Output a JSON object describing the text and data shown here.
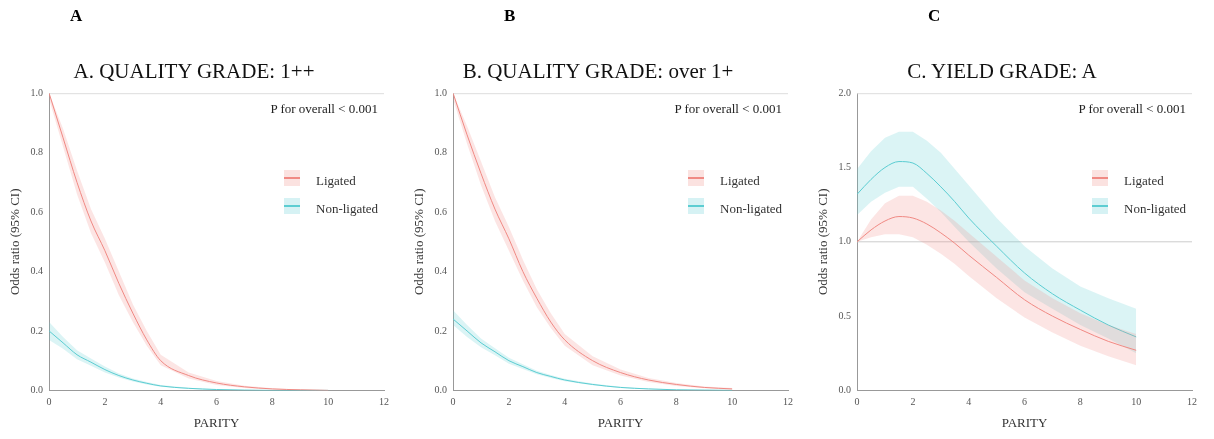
{
  "chart_data": [
    {
      "type": "line",
      "title": "A. QUALITY GRADE: 1++",
      "xlabel": "PARITY",
      "ylabel": "Odds ratio (95% CI)",
      "annotations": [
        "A",
        "P for overall < 0.001"
      ],
      "legend": "right",
      "x": [
        0,
        0.5,
        1,
        1.5,
        2,
        2.5,
        3,
        3.5,
        4,
        5,
        6,
        7,
        8,
        9,
        10
      ],
      "series": [
        {
          "name": "Ligated",
          "color": "#f08a84",
          "values": [
            1.0,
            0.85,
            0.7,
            0.57,
            0.47,
            0.36,
            0.26,
            0.17,
            0.1,
            0.05,
            0.025,
            0.012,
            0.005,
            0.002,
            0.0
          ],
          "lower": [
            0.98,
            0.82,
            0.66,
            0.53,
            0.43,
            0.32,
            0.23,
            0.15,
            0.085,
            0.04,
            0.018,
            0.008,
            0.003,
            0.001,
            0.0
          ],
          "upper": [
            1.0,
            0.88,
            0.74,
            0.61,
            0.51,
            0.4,
            0.29,
            0.2,
            0.12,
            0.06,
            0.032,
            0.016,
            0.007,
            0.003,
            0.001
          ]
        },
        {
          "name": "Non-ligated",
          "color": "#5ccdd2",
          "values": [
            0.2,
            0.16,
            0.12,
            0.095,
            0.07,
            0.05,
            0.035,
            0.024,
            0.015,
            0.007,
            0.003,
            0.001,
            0.0,
            0.0,
            0.0
          ],
          "lower": [
            0.17,
            0.14,
            0.105,
            0.083,
            0.06,
            0.043,
            0.03,
            0.02,
            0.012,
            0.005,
            0.002,
            0.0,
            0.0,
            0.0,
            0.0
          ],
          "upper": [
            0.23,
            0.18,
            0.135,
            0.107,
            0.08,
            0.057,
            0.04,
            0.028,
            0.018,
            0.009,
            0.004,
            0.002,
            0.001,
            0.0,
            0.0
          ]
        }
      ],
      "xlim": [
        0,
        12
      ],
      "xticks": [
        0,
        2,
        4,
        6,
        8,
        10,
        12
      ],
      "ylim": [
        0,
        1
      ],
      "yticks": [
        {
          "value": 0,
          "label": "0.0"
        },
        {
          "value": 0.2,
          "label": "0.2"
        },
        {
          "value": 0.4,
          "label": "0.4"
        },
        {
          "value": 0.6,
          "label": "0.6"
        },
        {
          "value": 0.8,
          "label": "0.8"
        },
        {
          "value": 1,
          "label": "1.0"
        }
      ]
    },
    {
      "type": "line",
      "title": "B. QUALITY GRADE: over 1+",
      "xlabel": "PARITY",
      "ylabel": "Odds ratio (95% CI)",
      "annotations": [
        "B",
        "P for overall < 0.001"
      ],
      "legend": "right",
      "x": [
        0,
        0.5,
        1,
        1.5,
        2,
        2.5,
        3,
        3.5,
        4,
        5,
        6,
        7,
        8,
        9,
        10
      ],
      "series": [
        {
          "name": "Ligated",
          "color": "#f08a84",
          "values": [
            1.0,
            0.86,
            0.73,
            0.61,
            0.51,
            0.4,
            0.31,
            0.23,
            0.17,
            0.1,
            0.06,
            0.035,
            0.02,
            0.01,
            0.005
          ],
          "lower": [
            0.98,
            0.83,
            0.69,
            0.57,
            0.47,
            0.37,
            0.28,
            0.21,
            0.15,
            0.085,
            0.05,
            0.028,
            0.015,
            0.007,
            0.002
          ],
          "upper": [
            1.0,
            0.89,
            0.77,
            0.65,
            0.55,
            0.44,
            0.34,
            0.26,
            0.19,
            0.115,
            0.07,
            0.042,
            0.025,
            0.013,
            0.008
          ]
        },
        {
          "name": "Non-ligated",
          "color": "#5ccdd2",
          "values": [
            0.24,
            0.2,
            0.16,
            0.13,
            0.1,
            0.08,
            0.06,
            0.047,
            0.035,
            0.02,
            0.01,
            0.005,
            0.002,
            0.001,
            0.0
          ],
          "lower": [
            0.22,
            0.18,
            0.145,
            0.118,
            0.09,
            0.072,
            0.054,
            0.042,
            0.031,
            0.017,
            0.008,
            0.004,
            0.001,
            0.0,
            0.0
          ],
          "upper": [
            0.27,
            0.22,
            0.175,
            0.142,
            0.11,
            0.088,
            0.066,
            0.052,
            0.039,
            0.023,
            0.012,
            0.006,
            0.003,
            0.002,
            0.001
          ]
        }
      ],
      "xlim": [
        0,
        12
      ],
      "xticks": [
        0,
        2,
        4,
        6,
        8,
        10,
        12
      ],
      "ylim": [
        0,
        1
      ],
      "yticks": [
        {
          "value": 0,
          "label": "0.0"
        },
        {
          "value": 0.2,
          "label": "0.2"
        },
        {
          "value": 0.4,
          "label": "0.4"
        },
        {
          "value": 0.6,
          "label": "0.6"
        },
        {
          "value": 0.8,
          "label": "0.8"
        },
        {
          "value": 1,
          "label": "1.0"
        }
      ]
    },
    {
      "type": "line",
      "title": "C. YIELD GRADE: A",
      "xlabel": "PARITY",
      "ylabel": "Odds ratio (95% CI)",
      "annotations": [
        "C",
        "P for overall < 0.001"
      ],
      "legend": "right",
      "x": [
        0,
        0.5,
        1,
        1.5,
        2,
        2.5,
        3,
        3.5,
        4,
        5,
        6,
        7,
        8,
        9,
        10
      ],
      "series": [
        {
          "name": "Ligated",
          "color": "#f08a84",
          "values": [
            1.0,
            1.08,
            1.14,
            1.17,
            1.16,
            1.12,
            1.06,
            0.99,
            0.91,
            0.76,
            0.61,
            0.5,
            0.41,
            0.33,
            0.27
          ],
          "lower": [
            1.0,
            1.03,
            1.05,
            1.05,
            1.03,
            0.98,
            0.92,
            0.85,
            0.77,
            0.62,
            0.49,
            0.39,
            0.3,
            0.23,
            0.17
          ],
          "upper": [
            1.0,
            1.15,
            1.26,
            1.31,
            1.31,
            1.27,
            1.21,
            1.14,
            1.06,
            0.9,
            0.74,
            0.62,
            0.52,
            0.44,
            0.38
          ]
        },
        {
          "name": "Non-ligated",
          "color": "#5ccdd2",
          "values": [
            1.32,
            1.42,
            1.5,
            1.54,
            1.53,
            1.46,
            1.37,
            1.27,
            1.16,
            0.97,
            0.79,
            0.65,
            0.54,
            0.44,
            0.36
          ],
          "lower": [
            1.18,
            1.27,
            1.33,
            1.37,
            1.37,
            1.29,
            1.2,
            1.1,
            1.0,
            0.82,
            0.66,
            0.55,
            0.44,
            0.35,
            0.25
          ],
          "upper": [
            1.49,
            1.61,
            1.7,
            1.74,
            1.74,
            1.68,
            1.6,
            1.49,
            1.38,
            1.16,
            0.97,
            0.82,
            0.7,
            0.62,
            0.55
          ]
        }
      ],
      "ref_lines": [
        {
          "axis": "y",
          "value": 1,
          "color": "#cccccc"
        }
      ],
      "xlim": [
        0,
        12
      ],
      "xticks": [
        0,
        2,
        4,
        6,
        8,
        10,
        12
      ],
      "ylim": [
        0,
        2
      ],
      "yticks": [
        {
          "value": 0,
          "label": "0.0"
        },
        {
          "value": 0.5,
          "label": "0.5"
        },
        {
          "value": 1,
          "label": "1.0"
        },
        {
          "value": 1.5,
          "label": "1.5"
        },
        {
          "value": 2,
          "label": "2.0"
        }
      ]
    }
  ]
}
